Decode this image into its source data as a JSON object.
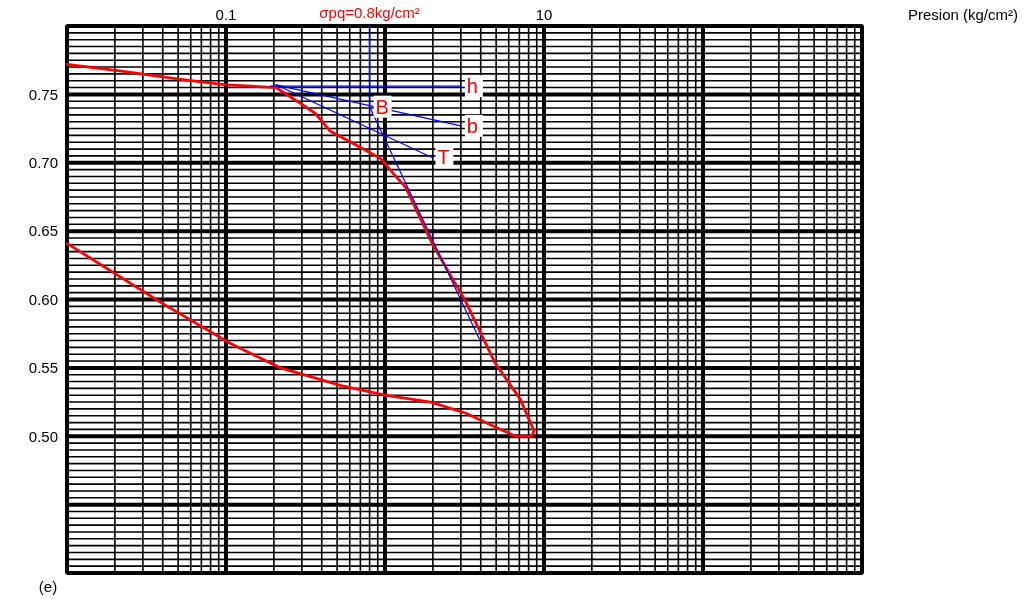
{
  "chart_data": {
    "type": "line",
    "xlabel": "Presion (kg/cm²)",
    "ylabel": "(e)",
    "log": "x",
    "grid": true,
    "xlim": [
      0.01,
      1000
    ],
    "ylim": [
      0.4,
      0.8
    ],
    "xticks": [
      {
        "value": 0.01,
        "label": null
      },
      0.1,
      {
        "value": 1,
        "label": null
      },
      10,
      {
        "value": 100,
        "label": null
      },
      {
        "value": 1000,
        "label": null
      }
    ],
    "yticks": [
      {
        "value": 0.4,
        "label": null
      },
      {
        "value": 0.45,
        "label": null
      },
      {
        "value": 0.5,
        "label": "0.50"
      },
      0.55,
      {
        "value": 0.6,
        "label": "0.60"
      },
      0.65,
      {
        "value": 0.7,
        "label": "0.70"
      },
      0.75,
      {
        "value": 0.8,
        "label": null
      }
    ],
    "series": [
      {
        "color": "#ff0000",
        "x": [
          0.01,
          0.022,
          0.052,
          0.1,
          0.206,
          0.297,
          0.365,
          0.453,
          0.68,
          0.94,
          1.15,
          1.35,
          2.0,
          3.2,
          4.9,
          7.1,
          8.65,
          8.4,
          6.6,
          3.2,
          1.94,
          1.0,
          0.53,
          0.22,
          0.106,
          0.04,
          0.01
        ],
        "values": [
          0.772,
          0.767,
          0.761,
          0.757,
          0.755,
          0.743,
          0.736,
          0.723,
          0.712,
          0.703,
          0.691,
          0.682,
          0.64,
          0.599,
          0.554,
          0.527,
          0.504,
          0.5,
          0.5,
          0.517,
          0.525,
          0.53,
          0.537,
          0.55,
          0.568,
          0.597,
          0.641
        ]
      },
      {
        "color": "#0000ff",
        "x": [
          0.19,
          3.0
        ],
        "values": [
          0.756,
          0.756
        ]
      },
      {
        "color": "#0000ff",
        "x": [
          0.206,
          3.0
        ],
        "values": [
          0.757,
          0.727
        ]
      },
      {
        "color": "#0000ff",
        "x": [
          0.206,
          1.96
        ],
        "values": [
          0.757,
          0.704
        ]
      },
      {
        "color": "#0000ff",
        "x": [
          0.8,
          0.8,
          4.0
        ],
        "values": [
          0.8,
          0.741,
          0.569
        ]
      }
    ],
    "annotations": [
      {
        "text": "σpq=0.8kg/cm²",
        "x": 0.8
      },
      {
        "text": "h",
        "x": 3.0,
        "y": 0.756
      },
      {
        "text": "B",
        "x": 0.8,
        "y": 0.741
      },
      {
        "text": "b",
        "x": 3.0,
        "y": 0.727
      },
      {
        "text": "T",
        "x": 1.96,
        "y": 0.704
      }
    ]
  }
}
